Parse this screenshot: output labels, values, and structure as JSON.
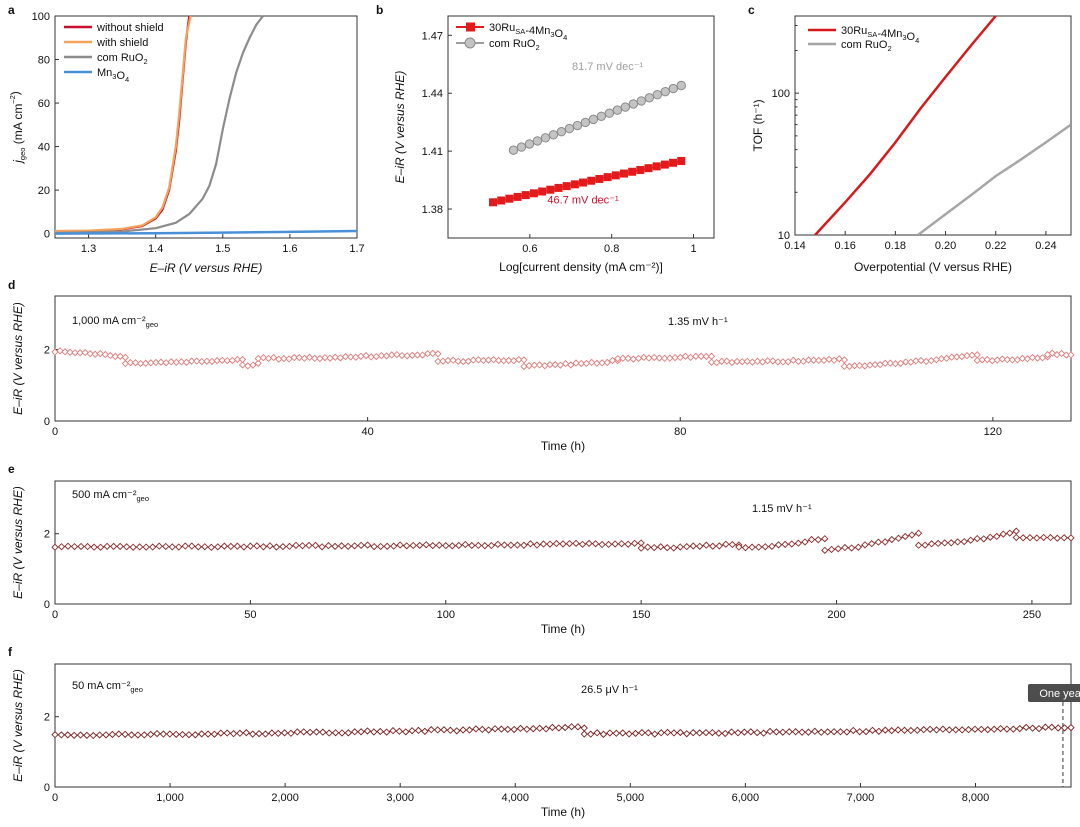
{
  "chart_data": [
    {
      "id": "a",
      "panel_label": "a",
      "type": "line",
      "xlabel": "E–iR (V versus RHE)",
      "ylabel": "j",
      "ylabel_sub": "geo",
      "ylabel_unit": " (mA cm",
      "ylabel_unit_sup": "–2",
      "ylabel_unit_end": ")",
      "xlim": [
        1.25,
        1.7
      ],
      "ylim": [
        -2,
        100
      ],
      "xticks": [
        1.3,
        1.4,
        1.5,
        1.6,
        1.7
      ],
      "yticks": [
        0,
        20,
        40,
        60,
        80,
        100
      ],
      "legend": [
        {
          "label": "without shield",
          "color": "#c8102e"
        },
        {
          "label": "with shield",
          "color": "#f5a35a"
        },
        {
          "label": "com RuO",
          "sub": "2",
          "color": "#8c8c8c"
        },
        {
          "label": "Mn",
          "sub": "3",
          "label2": "O",
          "sub2": "4",
          "color": "#4a90d9"
        }
      ],
      "series": [
        {
          "name": "without shield",
          "color": "#c8102e",
          "x": [
            1.25,
            1.3,
            1.35,
            1.38,
            1.4,
            1.41,
            1.42,
            1.43,
            1.435,
            1.44,
            1.445,
            1.45
          ],
          "y": [
            1.0,
            1.2,
            2.0,
            3.5,
            7.0,
            11,
            20,
            38,
            52,
            70,
            88,
            100
          ]
        },
        {
          "name": "with shield",
          "color": "#f5a35a",
          "x": [
            1.25,
            1.3,
            1.35,
            1.38,
            1.4,
            1.41,
            1.42,
            1.43,
            1.435,
            1.44,
            1.445,
            1.452
          ],
          "y": [
            1.2,
            1.4,
            2.2,
            3.8,
            7.5,
            12,
            21,
            40,
            55,
            72,
            90,
            100
          ]
        },
        {
          "name": "com RuO2",
          "color": "#8c8c8c",
          "x": [
            1.25,
            1.35,
            1.4,
            1.43,
            1.45,
            1.47,
            1.48,
            1.49,
            1.5,
            1.51,
            1.52,
            1.53,
            1.54,
            1.55,
            1.56
          ],
          "y": [
            0.3,
            1.0,
            2.5,
            5,
            9,
            16,
            22,
            32,
            48,
            62,
            74,
            83,
            90,
            96,
            100
          ]
        },
        {
          "name": "Mn3O4",
          "color": "#4a90d9",
          "x": [
            1.25,
            1.4,
            1.5,
            1.6,
            1.7
          ],
          "y": [
            0.0,
            0.2,
            0.5,
            0.8,
            1.2
          ]
        }
      ]
    },
    {
      "id": "b",
      "panel_label": "b",
      "type": "scatter",
      "xlabel": "Log[current density (mA cm⁻²)]",
      "ylabel": "E–iR (V versus RHE)",
      "xlim": [
        0.4,
        1.05
      ],
      "ylim": [
        1.365,
        1.48
      ],
      "xticks": [
        0.6,
        0.8,
        1.0
      ],
      "ytick_labels": [
        "1.38",
        "1.41",
        "1.44",
        "1.47"
      ],
      "yticks": [
        1.38,
        1.41,
        1.44,
        1.47
      ],
      "legend": [
        {
          "label": "30Ru",
          "sub": "SA",
          "label2": "-4Mn",
          "sub2": "3",
          "label3": "O",
          "sub3": "4",
          "color": "#e31a1c",
          "marker": "square"
        },
        {
          "label": "com RuO",
          "sub": "2",
          "color": "#9e9e9e",
          "marker": "circle"
        }
      ],
      "annotations": [
        {
          "text": "81.7 mV dec⁻¹",
          "color": "#9e9e9e",
          "x": 0.79,
          "y": 1.452
        },
        {
          "text": "46.7 mV dec⁻¹",
          "color": "#c8102e",
          "x": 0.73,
          "y": 1.383
        }
      ],
      "series": [
        {
          "name": "30RuSA-4Mn3O4",
          "color": "#e31a1c",
          "marker": "square",
          "x0": 0.51,
          "x1": 0.97,
          "n": 24,
          "y0": 1.3835,
          "y1": 1.4049
        },
        {
          "name": "com RuO2",
          "color": "#9e9e9e",
          "marker": "circle",
          "x0": 0.56,
          "x1": 0.97,
          "n": 22,
          "y0": 1.4105,
          "y1": 1.444
        }
      ]
    },
    {
      "id": "c",
      "panel_label": "c",
      "type": "line",
      "yscale": "log",
      "xlabel": "Overpotential (V versus RHE)",
      "ylabel": "TOF (h⁻¹)",
      "xlim": [
        0.14,
        0.25
      ],
      "ylim": [
        10,
        350
      ],
      "xticks": [
        0.14,
        0.16,
        0.18,
        0.2,
        0.22,
        0.24
      ],
      "xtick_labels": [
        "0.14",
        "0.16",
        "0.18",
        "0.20",
        "0.22",
        "0.24"
      ],
      "yticks": [
        10,
        100
      ],
      "legend": [
        {
          "label": "30Ru",
          "sub": "SA",
          "label2": "-4Mn",
          "sub2": "3",
          "label3": "O",
          "sub3": "4",
          "color": "#d7191c"
        },
        {
          "label": "com RuO",
          "sub": "2",
          "color": "#a6a6a6"
        }
      ],
      "series": [
        {
          "name": "30RuSA-4Mn3O4",
          "color": "#d7191c",
          "x": [
            0.148,
            0.16,
            0.17,
            0.18,
            0.19,
            0.2,
            0.21,
            0.22
          ],
          "y": [
            10,
            17,
            27,
            45,
            78,
            130,
            215,
            350
          ]
        },
        {
          "name": "com RuO2",
          "color": "#a6a6a6",
          "x": [
            0.189,
            0.2,
            0.21,
            0.22,
            0.23,
            0.24,
            0.25
          ],
          "y": [
            10,
            14,
            19,
            26,
            34,
            45,
            60
          ]
        }
      ]
    },
    {
      "id": "d",
      "panel_label": "d",
      "type": "scatter",
      "xlabel": "Time (h)",
      "ylabel": "E–iR (V versus RHE)",
      "xlim": [
        0,
        130
      ],
      "ylim": [
        0,
        3.5
      ],
      "xticks": [
        0,
        40,
        80,
        120
      ],
      "yticks": [
        0,
        2
      ],
      "condition": "1,000 mA cm⁻²",
      "condition_sub": "geo",
      "rate": "1.35 mV h⁻¹",
      "marker_color": "#e07a7a",
      "segments": [
        [
          0,
          9,
          1.95,
          1.78
        ],
        [
          9,
          24,
          1.62,
          1.72
        ],
        [
          24,
          26,
          1.55,
          1.6
        ],
        [
          26,
          49,
          1.75,
          1.88
        ],
        [
          49,
          60,
          1.68,
          1.72
        ],
        [
          60,
          72,
          1.55,
          1.68
        ],
        [
          72,
          84,
          1.75,
          1.82
        ],
        [
          84,
          101,
          1.65,
          1.72
        ],
        [
          101,
          118,
          1.55,
          1.85
        ],
        [
          118,
          127,
          1.7,
          1.78
        ],
        [
          127,
          130,
          1.88,
          1.86
        ]
      ],
      "points_per_hour": 1.5
    },
    {
      "id": "e",
      "panel_label": "e",
      "type": "scatter",
      "xlabel": "Time (h)",
      "ylabel": "E–iR (V versus RHE)",
      "xlim": [
        0,
        260
      ],
      "ylim": [
        0,
        3.5
      ],
      "xticks": [
        0,
        50,
        100,
        150,
        200,
        250
      ],
      "yticks": [
        0,
        2
      ],
      "condition": "500 mA cm⁻²",
      "condition_sub": "geo",
      "rate": "1.15 mV h⁻¹",
      "marker_color": "#8b2a2a",
      "segments": [
        [
          0,
          150,
          1.62,
          1.72
        ],
        [
          150,
          175,
          1.6,
          1.7
        ],
        [
          175,
          197,
          1.6,
          1.88
        ],
        [
          197,
          221,
          1.55,
          2.02
        ],
        [
          221,
          246,
          1.68,
          2.05
        ],
        [
          246,
          260,
          1.88,
          1.9
        ]
      ],
      "points_per_hour": 0.6
    },
    {
      "id": "f",
      "panel_label": "f",
      "type": "scatter",
      "xlabel": "Time (h)",
      "ylabel": "E–iR (V versus RHE)",
      "xlim": [
        0,
        8830
      ],
      "ylim": [
        0,
        3.5
      ],
      "xticks": [
        0,
        1000,
        2000,
        3000,
        4000,
        5000,
        6000,
        7000,
        8000
      ],
      "xtick_labels": [
        "0",
        "1,000",
        "2,000",
        "3,000",
        "4,000",
        "5,000",
        "6,000",
        "7,000",
        "8,000"
      ],
      "yticks": [
        0,
        2
      ],
      "condition": "50 mA cm⁻²",
      "condition_sub": "geo",
      "rate": "26.5 μV h⁻¹",
      "marker_color": "#7a1f1f",
      "callout": "One year",
      "callout_x": 8760,
      "segments": [
        [
          0,
          4600,
          1.48,
          1.7
        ],
        [
          4600,
          8830,
          1.52,
          1.7
        ]
      ],
      "points_per_hour": 0.018
    }
  ]
}
